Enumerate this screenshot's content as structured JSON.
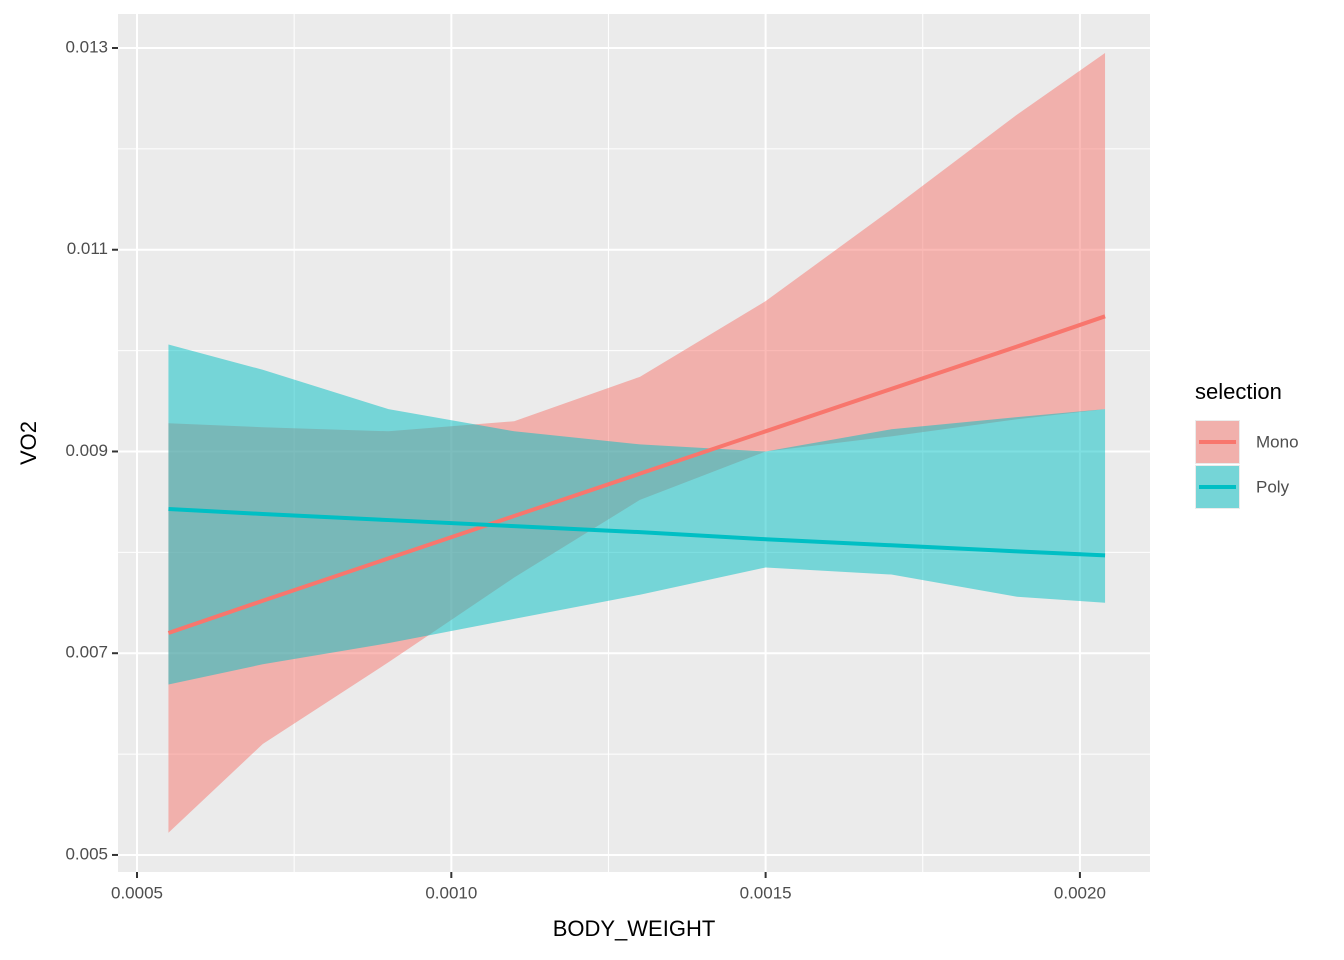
{
  "chart_data": {
    "type": "line",
    "x_label": "BODY_WEIGHT",
    "y_label": "VO2",
    "legend_title": "selection",
    "legend_position": "right",
    "grid": true,
    "x": [
      0.00055,
      0.0007,
      0.0009,
      0.0011,
      0.0013,
      0.0015,
      0.0017,
      0.0019,
      0.00204
    ],
    "series": [
      {
        "name": "Mono",
        "color": "#F8766D",
        "values": [
          0.0072,
          0.00752,
          0.00794,
          0.00836,
          0.00878,
          0.0092,
          0.00962,
          0.01004,
          0.01034
        ],
        "upper": [
          0.00928,
          0.00924,
          0.0092,
          0.0093,
          0.00974,
          0.01049,
          0.0114,
          0.01234,
          0.01295
        ],
        "lower": [
          0.00522,
          0.0061,
          0.00691,
          0.00775,
          0.00852,
          0.009,
          0.00915,
          0.00932,
          0.00942
        ]
      },
      {
        "name": "Poly",
        "color": "#00BFC4",
        "values": [
          0.00843,
          0.00838,
          0.00832,
          0.00826,
          0.0082,
          0.00813,
          0.00807,
          0.00801,
          0.00797
        ],
        "upper": [
          0.01006,
          0.00981,
          0.00942,
          0.0092,
          0.00907,
          0.009,
          0.00922,
          0.00934,
          0.00942
        ],
        "lower": [
          0.00669,
          0.00689,
          0.0071,
          0.00734,
          0.00758,
          0.00785,
          0.00778,
          0.00756,
          0.0075
        ]
      }
    ],
    "xlim": [
      0.00046975,
      0.0021115
    ],
    "ylim": [
      0.004831,
      0.013337
    ],
    "xticks": [
      0.0005,
      {
        "value": 0.001,
        "label": "0.0010"
      },
      0.0015,
      {
        "value": 0.002,
        "label": "0.0020"
      }
    ],
    "yticks": [
      0.005,
      0.007,
      0.009,
      0.011,
      0.013
    ]
  }
}
